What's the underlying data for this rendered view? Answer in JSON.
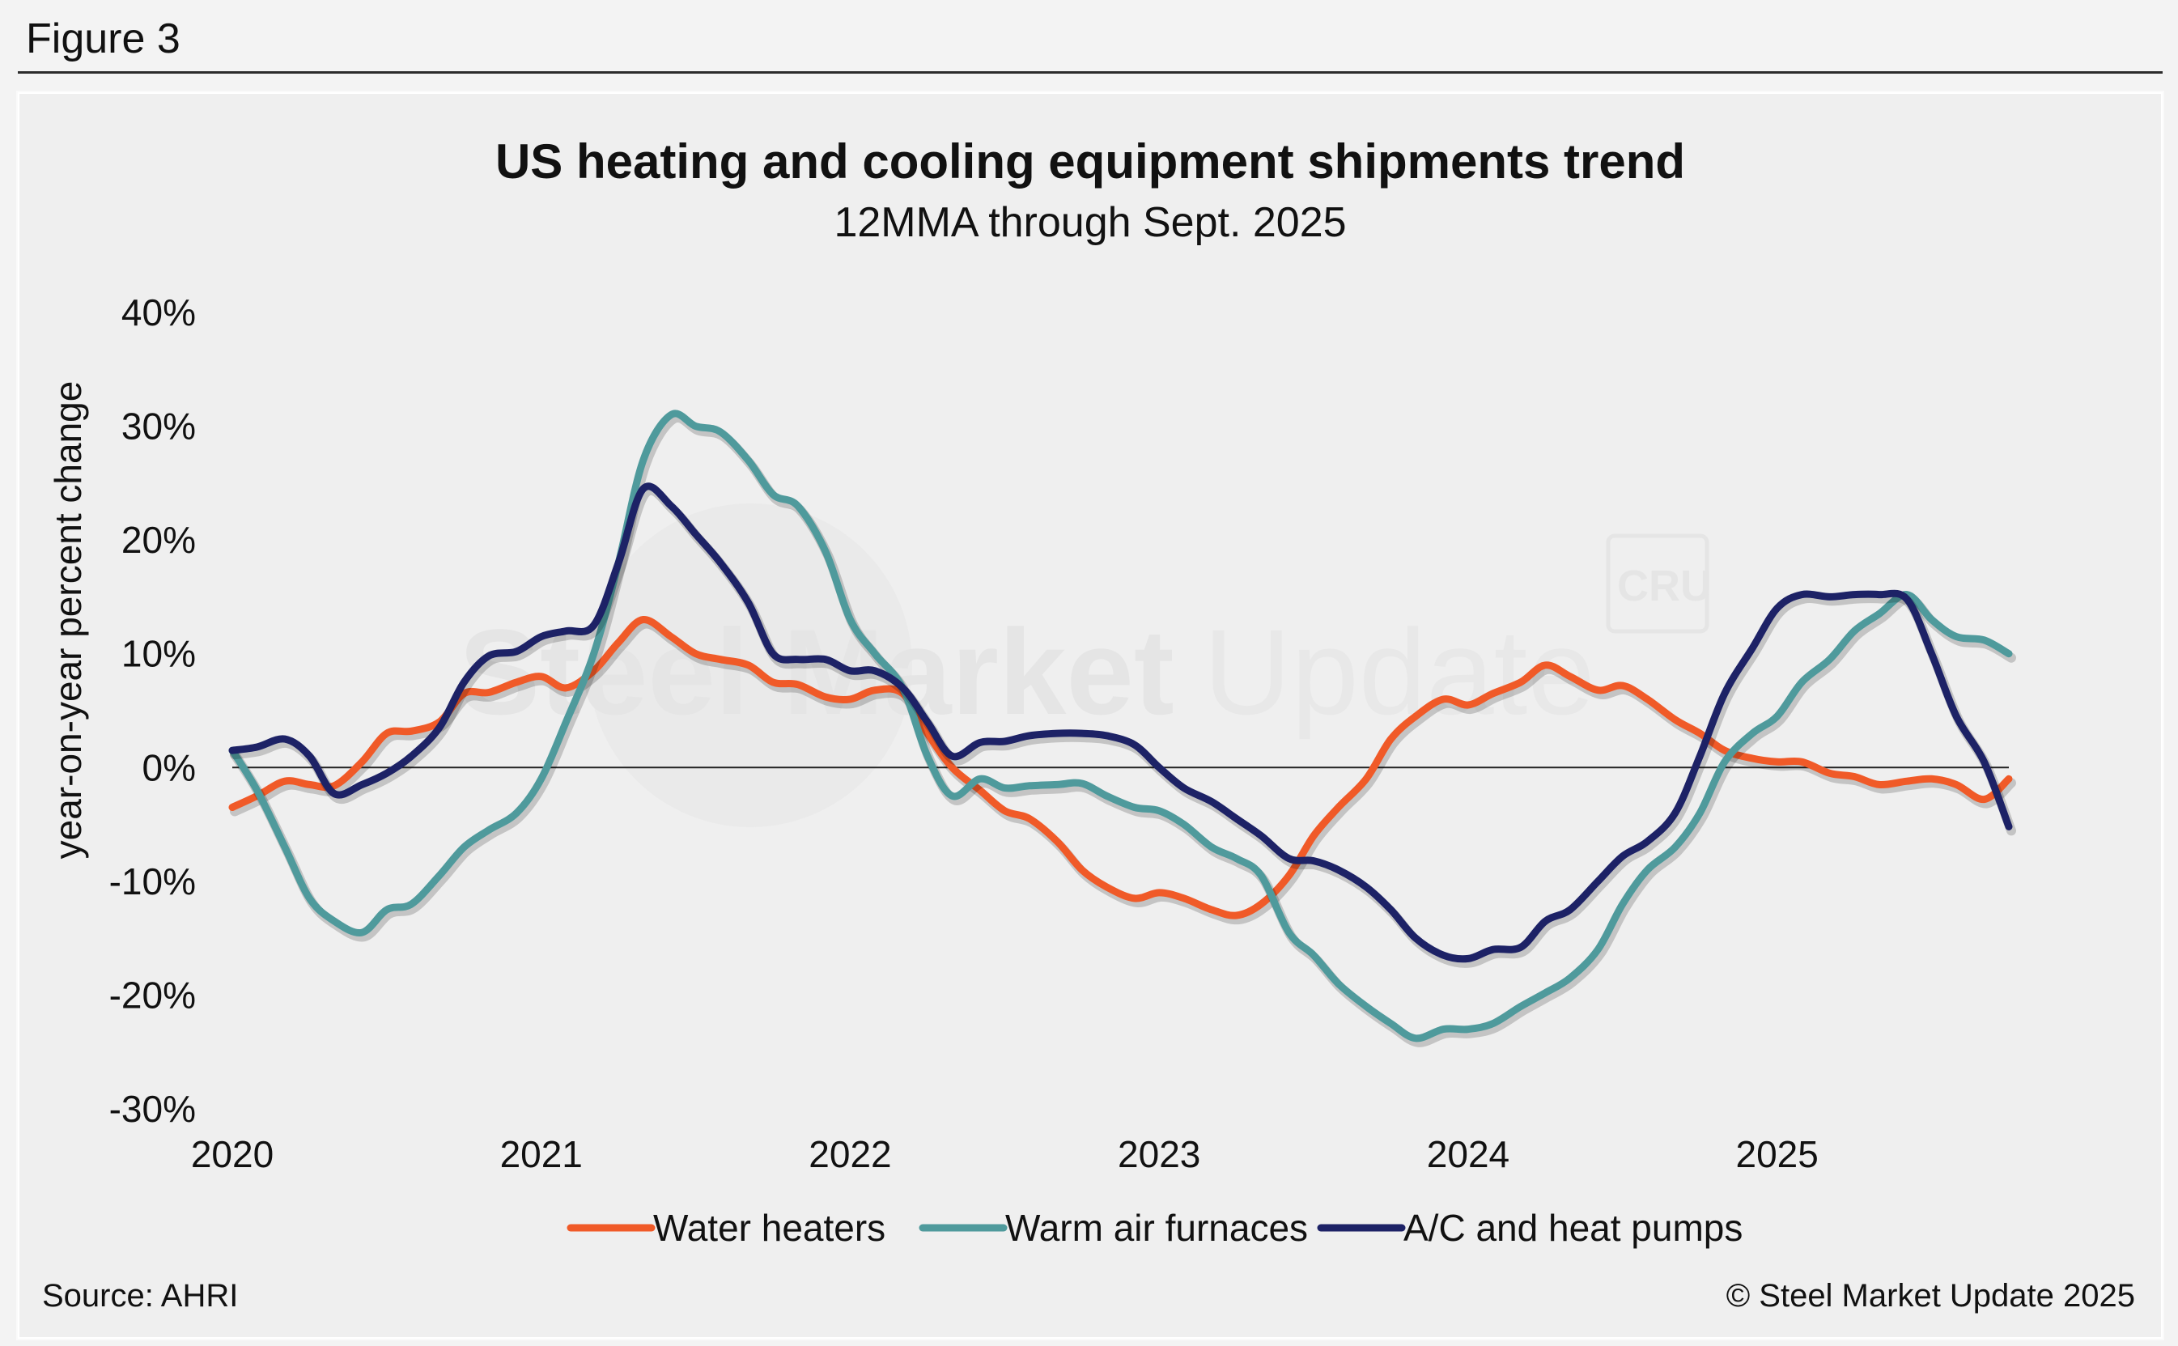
{
  "figure_label": "Figure 3",
  "watermark": {
    "main": "Steel Market",
    "light": "Update",
    "badge": "CRU"
  },
  "footer": {
    "source": "Source: AHRI",
    "copyright": "© Steel Market Update 2025"
  },
  "colors": {
    "water": "#f05a28",
    "furnace": "#4f9a9c",
    "ac": "#1d2266"
  },
  "chart_data": {
    "type": "line",
    "title": "US heating and cooling equipment shipments trend",
    "subtitle": "12MMA through Sept. 2025",
    "ylabel": "year-on-year percent change",
    "xlabel": "",
    "ylim": [
      -30,
      40
    ],
    "xlim": [
      2020,
      2025.75
    ],
    "yticks": [
      40,
      30,
      20,
      10,
      0,
      -10,
      -20,
      -30
    ],
    "ytick_labels": [
      "40%",
      "30%",
      "20%",
      "10%",
      "0%",
      "-10%",
      "-20%",
      "-30%"
    ],
    "xticks": [
      2020,
      2021,
      2022,
      2023,
      2024,
      2025
    ],
    "xtick_labels": [
      "2020",
      "2021",
      "2022",
      "2023",
      "2024",
      "2025"
    ],
    "legend_position": "bottom",
    "grid": false,
    "series": [
      {
        "name": "Water heaters",
        "color": "#f05a28",
        "points": [
          [
            2020.0,
            -3.5
          ],
          [
            2020.08,
            -2.5
          ],
          [
            2020.17,
            -1.2
          ],
          [
            2020.25,
            -1.5
          ],
          [
            2020.33,
            -1.6
          ],
          [
            2020.42,
            0.5
          ],
          [
            2020.5,
            3
          ],
          [
            2020.58,
            3.2
          ],
          [
            2020.67,
            4
          ],
          [
            2020.75,
            6.5
          ],
          [
            2020.83,
            6.6
          ],
          [
            2020.92,
            7.5
          ],
          [
            2021.0,
            8
          ],
          [
            2021.08,
            7
          ],
          [
            2021.17,
            8.5
          ],
          [
            2021.25,
            11
          ],
          [
            2021.33,
            13
          ],
          [
            2021.42,
            11.5
          ],
          [
            2021.5,
            10
          ],
          [
            2021.58,
            9.5
          ],
          [
            2021.67,
            9
          ],
          [
            2021.75,
            7.5
          ],
          [
            2021.83,
            7.3
          ],
          [
            2021.92,
            6.2
          ],
          [
            2022.0,
            6
          ],
          [
            2022.08,
            6.8
          ],
          [
            2022.17,
            6.5
          ],
          [
            2022.25,
            3
          ],
          [
            2022.33,
            0
          ],
          [
            2022.42,
            -2
          ],
          [
            2022.5,
            -3.8
          ],
          [
            2022.58,
            -4.5
          ],
          [
            2022.67,
            -6.5
          ],
          [
            2022.75,
            -9
          ],
          [
            2022.83,
            -10.5
          ],
          [
            2022.92,
            -11.5
          ],
          [
            2023.0,
            -11
          ],
          [
            2023.08,
            -11.5
          ],
          [
            2023.17,
            -12.5
          ],
          [
            2023.25,
            -13
          ],
          [
            2023.33,
            -12
          ],
          [
            2023.42,
            -9.5
          ],
          [
            2023.5,
            -6
          ],
          [
            2023.58,
            -3.5
          ],
          [
            2023.67,
            -1
          ],
          [
            2023.75,
            2.5
          ],
          [
            2023.83,
            4.5
          ],
          [
            2023.92,
            6
          ],
          [
            2024.0,
            5.5
          ],
          [
            2024.08,
            6.5
          ],
          [
            2024.17,
            7.5
          ],
          [
            2024.25,
            9
          ],
          [
            2024.33,
            8
          ],
          [
            2024.42,
            6.8
          ],
          [
            2024.5,
            7.2
          ],
          [
            2024.58,
            6
          ],
          [
            2024.67,
            4.2
          ],
          [
            2024.75,
            3
          ],
          [
            2024.83,
            1.5
          ],
          [
            2024.92,
            0.8
          ],
          [
            2025.0,
            0.5
          ],
          [
            2025.08,
            0.5
          ],
          [
            2025.17,
            -0.5
          ],
          [
            2025.25,
            -0.8
          ],
          [
            2025.33,
            -1.5
          ],
          [
            2025.42,
            -1.2
          ],
          [
            2025.5,
            -1
          ],
          [
            2025.58,
            -1.5
          ],
          [
            2025.67,
            -2.8
          ],
          [
            2025.75,
            -1
          ]
        ]
      },
      {
        "name": "Warm air furnaces",
        "color": "#4f9a9c",
        "points": [
          [
            2020.0,
            1.5
          ],
          [
            2020.08,
            -2
          ],
          [
            2020.17,
            -7
          ],
          [
            2020.25,
            -11.5
          ],
          [
            2020.33,
            -13.5
          ],
          [
            2020.42,
            -14.5
          ],
          [
            2020.5,
            -12.5
          ],
          [
            2020.58,
            -12
          ],
          [
            2020.67,
            -9.5
          ],
          [
            2020.75,
            -7
          ],
          [
            2020.83,
            -5.5
          ],
          [
            2020.92,
            -4
          ],
          [
            2021.0,
            -1
          ],
          [
            2021.08,
            4
          ],
          [
            2021.17,
            10
          ],
          [
            2021.25,
            18
          ],
          [
            2021.33,
            27
          ],
          [
            2021.42,
            31
          ],
          [
            2021.5,
            30
          ],
          [
            2021.58,
            29.5
          ],
          [
            2021.67,
            27
          ],
          [
            2021.75,
            24
          ],
          [
            2021.83,
            23
          ],
          [
            2021.92,
            19
          ],
          [
            2022.0,
            13
          ],
          [
            2022.08,
            10
          ],
          [
            2022.17,
            7
          ],
          [
            2022.25,
            1
          ],
          [
            2022.33,
            -2.5
          ],
          [
            2022.42,
            -1
          ],
          [
            2022.5,
            -1.8
          ],
          [
            2022.58,
            -1.6
          ],
          [
            2022.67,
            -1.5
          ],
          [
            2022.75,
            -1.4
          ],
          [
            2022.83,
            -2.5
          ],
          [
            2022.92,
            -3.5
          ],
          [
            2023.0,
            -3.8
          ],
          [
            2023.08,
            -5
          ],
          [
            2023.17,
            -7
          ],
          [
            2023.25,
            -8
          ],
          [
            2023.33,
            -9.5
          ],
          [
            2023.42,
            -14.5
          ],
          [
            2023.5,
            -16.5
          ],
          [
            2023.58,
            -19
          ],
          [
            2023.67,
            -21
          ],
          [
            2023.75,
            -22.5
          ],
          [
            2023.83,
            -23.8
          ],
          [
            2023.92,
            -23
          ],
          [
            2024.0,
            -23
          ],
          [
            2024.08,
            -22.5
          ],
          [
            2024.17,
            -21
          ],
          [
            2024.25,
            -19.8
          ],
          [
            2024.33,
            -18.5
          ],
          [
            2024.42,
            -16
          ],
          [
            2024.5,
            -12
          ],
          [
            2024.58,
            -9
          ],
          [
            2024.67,
            -7
          ],
          [
            2024.75,
            -4
          ],
          [
            2024.83,
            0.5
          ],
          [
            2024.92,
            3
          ],
          [
            2025.0,
            4.5
          ],
          [
            2025.08,
            7.5
          ],
          [
            2025.17,
            9.5
          ],
          [
            2025.25,
            12
          ],
          [
            2025.33,
            13.5
          ],
          [
            2025.42,
            15.2
          ],
          [
            2025.5,
            13
          ],
          [
            2025.58,
            11.5
          ],
          [
            2025.67,
            11.2
          ],
          [
            2025.75,
            10
          ]
        ]
      },
      {
        "name": "A/C and heat pumps",
        "color": "#1d2266",
        "points": [
          [
            2020.0,
            1.5
          ],
          [
            2020.08,
            1.8
          ],
          [
            2020.17,
            2.5
          ],
          [
            2020.25,
            1
          ],
          [
            2020.33,
            -2.3
          ],
          [
            2020.42,
            -1.5
          ],
          [
            2020.5,
            -0.5
          ],
          [
            2020.58,
            1
          ],
          [
            2020.67,
            3.5
          ],
          [
            2020.75,
            7.5
          ],
          [
            2020.83,
            9.8
          ],
          [
            2020.92,
            10.2
          ],
          [
            2021.0,
            11.5
          ],
          [
            2021.08,
            12
          ],
          [
            2021.17,
            12.5
          ],
          [
            2021.25,
            18
          ],
          [
            2021.33,
            24.5
          ],
          [
            2021.42,
            23
          ],
          [
            2021.5,
            20.5
          ],
          [
            2021.58,
            18
          ],
          [
            2021.67,
            14.5
          ],
          [
            2021.75,
            10
          ],
          [
            2021.83,
            9.5
          ],
          [
            2021.92,
            9.5
          ],
          [
            2022.0,
            8.5
          ],
          [
            2022.08,
            8.5
          ],
          [
            2022.17,
            7
          ],
          [
            2022.25,
            4
          ],
          [
            2022.33,
            1
          ],
          [
            2022.42,
            2.2
          ],
          [
            2022.5,
            2.3
          ],
          [
            2022.58,
            2.8
          ],
          [
            2022.67,
            3
          ],
          [
            2022.75,
            3
          ],
          [
            2022.83,
            2.8
          ],
          [
            2022.92,
            2
          ],
          [
            2023.0,
            0
          ],
          [
            2023.08,
            -1.8
          ],
          [
            2023.17,
            -3
          ],
          [
            2023.25,
            -4.5
          ],
          [
            2023.33,
            -6
          ],
          [
            2023.42,
            -8
          ],
          [
            2023.5,
            -8.2
          ],
          [
            2023.58,
            -9
          ],
          [
            2023.67,
            -10.5
          ],
          [
            2023.75,
            -12.5
          ],
          [
            2023.83,
            -15
          ],
          [
            2023.92,
            -16.5
          ],
          [
            2024.0,
            -16.8
          ],
          [
            2024.08,
            -16
          ],
          [
            2024.17,
            -15.8
          ],
          [
            2024.25,
            -13.5
          ],
          [
            2024.33,
            -12.5
          ],
          [
            2024.42,
            -10
          ],
          [
            2024.5,
            -7.8
          ],
          [
            2024.58,
            -6.5
          ],
          [
            2024.67,
            -4
          ],
          [
            2024.75,
            1
          ],
          [
            2024.83,
            6.5
          ],
          [
            2024.92,
            10.5
          ],
          [
            2025.0,
            14
          ],
          [
            2025.08,
            15.2
          ],
          [
            2025.17,
            15
          ],
          [
            2025.25,
            15.2
          ],
          [
            2025.33,
            15.2
          ],
          [
            2025.42,
            14.8
          ],
          [
            2025.5,
            10
          ],
          [
            2025.58,
            4.5
          ],
          [
            2025.67,
            0.5
          ],
          [
            2025.75,
            -5.2
          ]
        ]
      }
    ]
  }
}
